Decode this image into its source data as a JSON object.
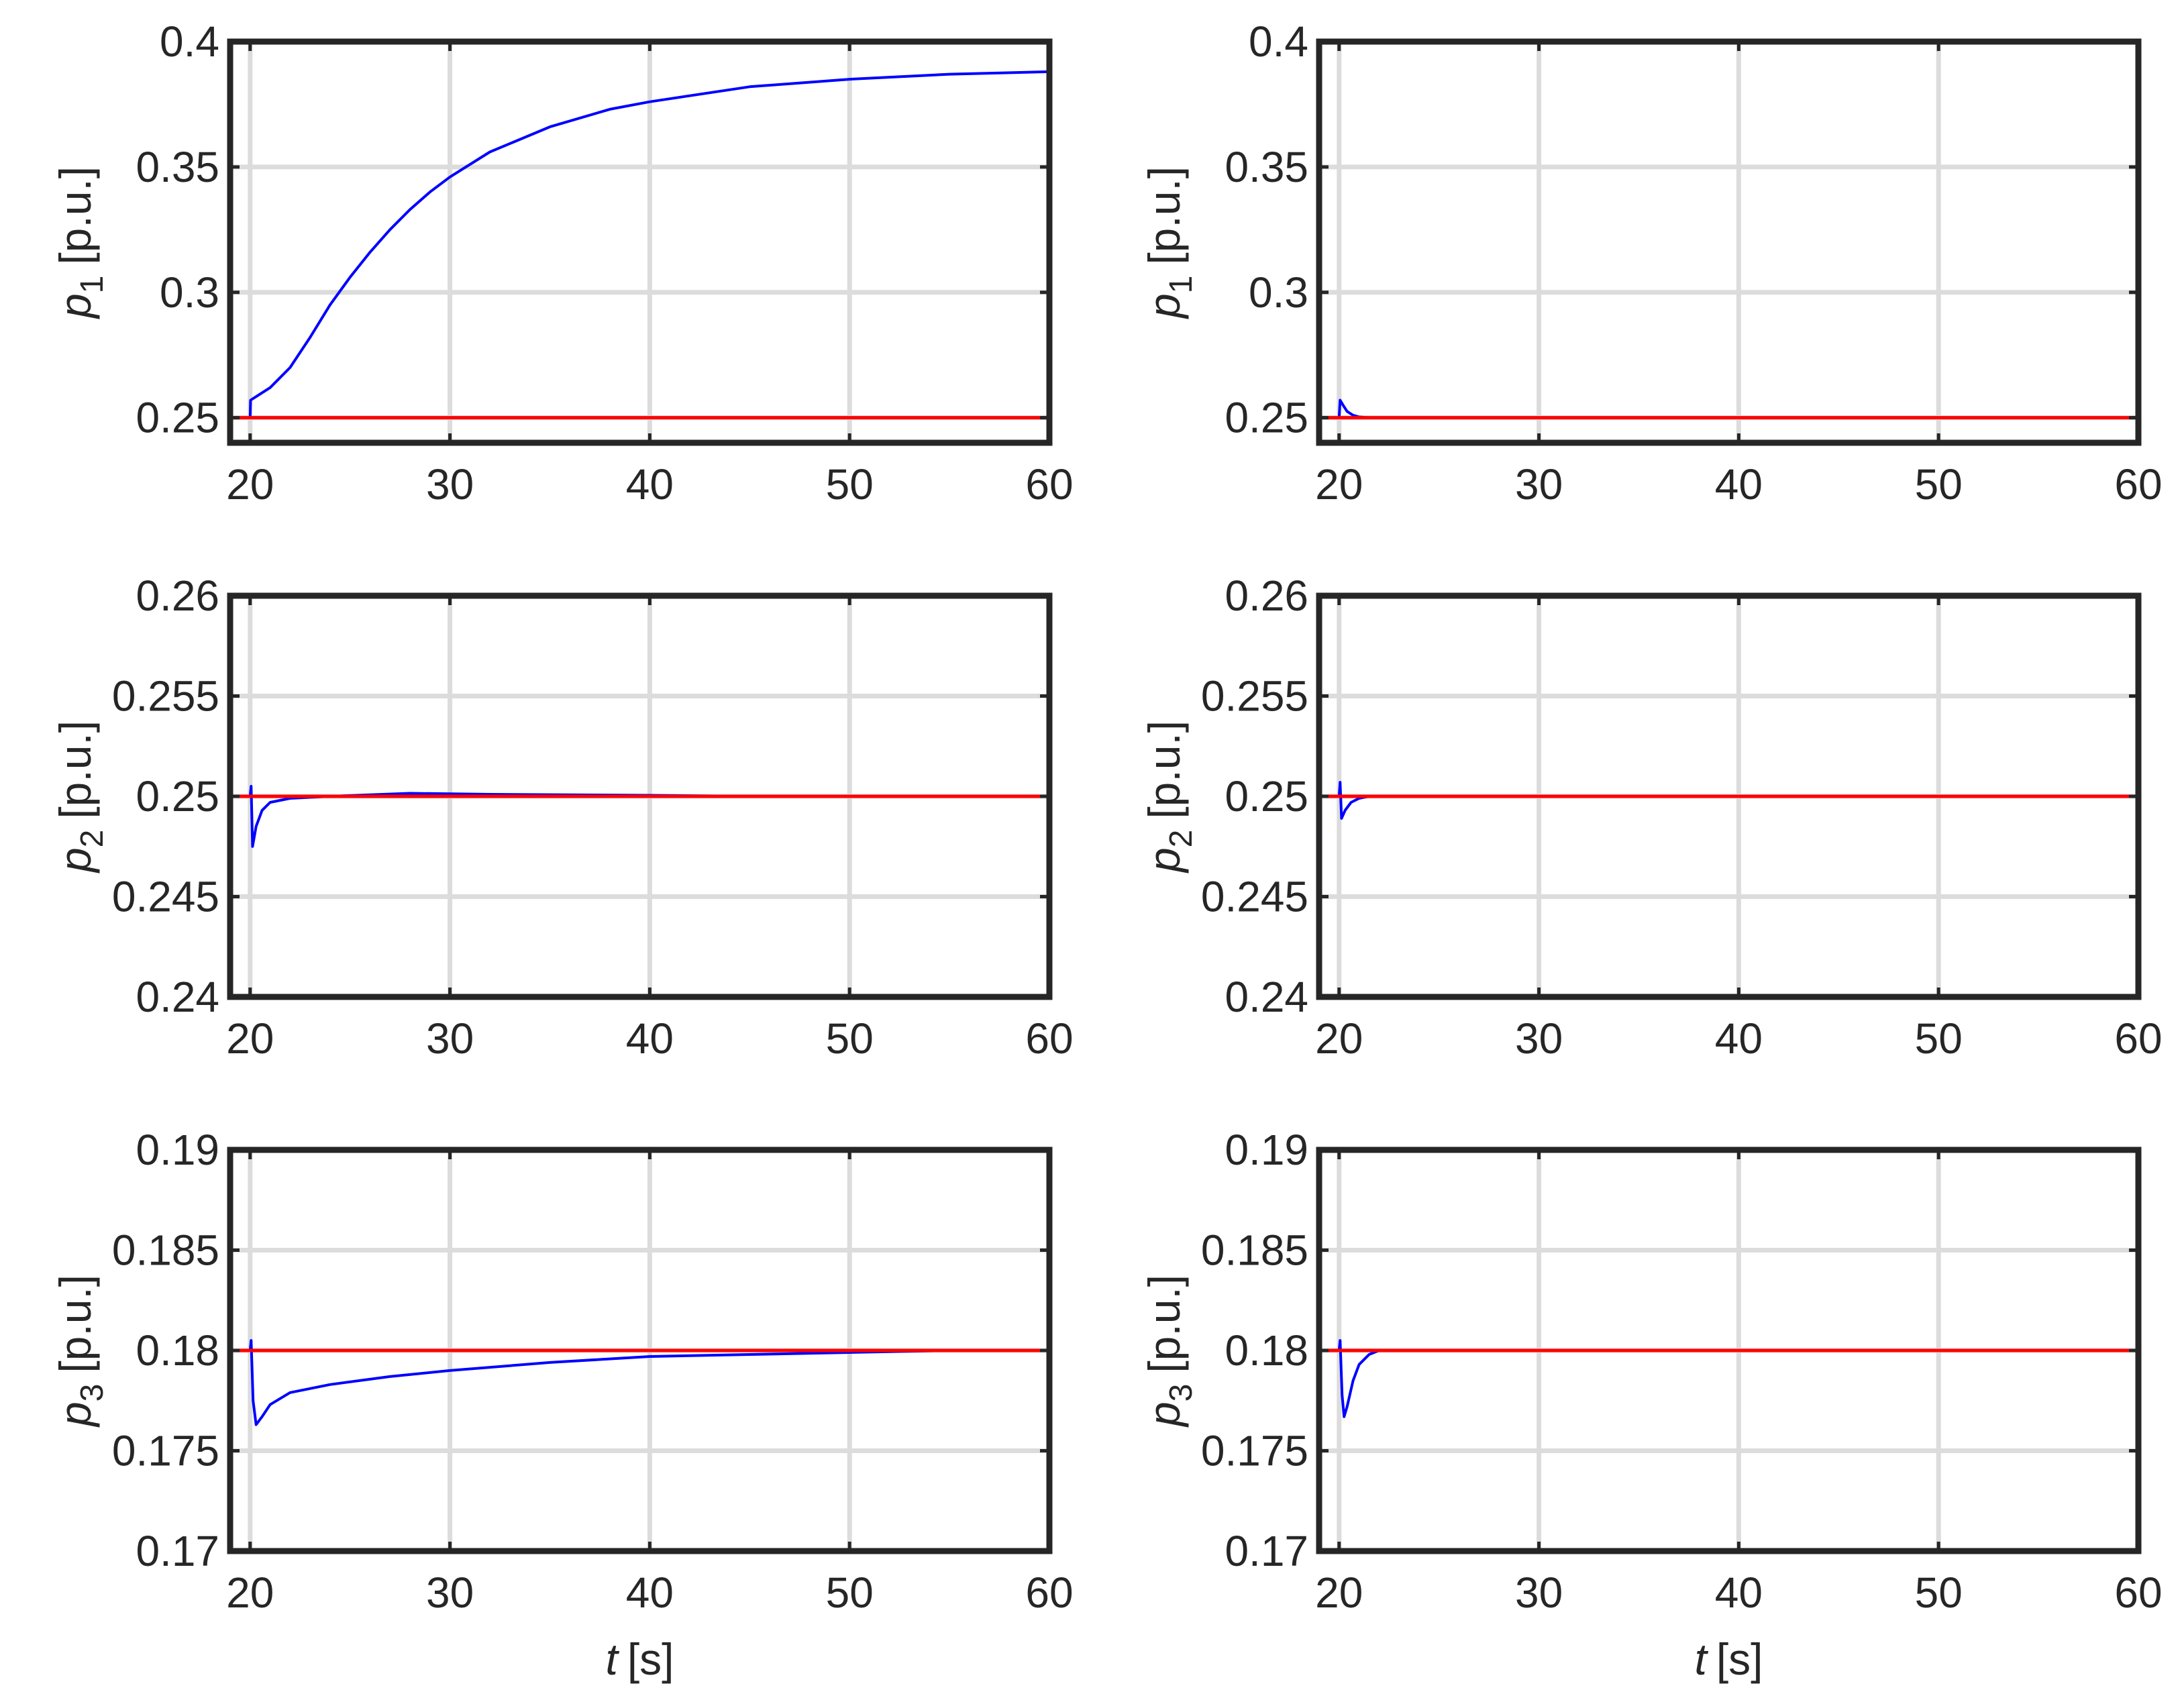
{
  "colors": {
    "grid": "#dcdcdc",
    "frame": "#262626",
    "measured": "#0000ff",
    "reference": "#ff0000"
  },
  "chart_data": [
    {
      "type": "line",
      "ylabel": {
        "sym": "p",
        "sub": "1",
        "unit": "[p.u.]"
      },
      "xlabel": null,
      "xlim": [
        19,
        60
      ],
      "ylim": [
        0.24,
        0.4
      ],
      "xticks": [
        20,
        30,
        40,
        50,
        60
      ],
      "xtick_labels": [
        "20",
        "30",
        "40",
        "50",
        "60"
      ],
      "yticks": [
        0.25,
        0.3,
        0.35,
        0.4
      ],
      "ytick_labels": [
        "0.25",
        "0.3",
        "0.35",
        "0.4"
      ],
      "grid": true,
      "series": [
        {
          "color": "#0000ff",
          "points": [
            [
              20,
              0.25
            ],
            [
              20.02,
              0.257
            ],
            [
              21,
              0.262
            ],
            [
              22,
              0.27
            ],
            [
              23,
              0.282
            ],
            [
              24,
              0.295
            ],
            [
              25,
              0.306
            ],
            [
              26,
              0.316
            ],
            [
              27,
              0.325
            ],
            [
              28,
              0.333
            ],
            [
              29,
              0.34
            ],
            [
              30,
              0.346
            ],
            [
              32,
              0.356
            ],
            [
              35,
              0.366
            ],
            [
              38,
              0.373
            ],
            [
              40,
              0.376
            ],
            [
              45,
              0.382
            ],
            [
              50,
              0.385
            ],
            [
              55,
              0.387
            ],
            [
              60,
              0.388
            ]
          ]
        },
        {
          "color": "#ff0000",
          "points": [
            [
              19,
              0.25
            ],
            [
              60,
              0.25
            ]
          ]
        }
      ]
    },
    {
      "type": "line",
      "ylabel": {
        "sym": "p",
        "sub": "1",
        "unit": "[p.u.]"
      },
      "xlabel": null,
      "xlim": [
        19,
        60
      ],
      "ylim": [
        0.24,
        0.4
      ],
      "xticks": [
        20,
        30,
        40,
        50,
        60
      ],
      "xtick_labels": [
        "20",
        "30",
        "40",
        "50",
        "60"
      ],
      "yticks": [
        0.25,
        0.3,
        0.35,
        0.4
      ],
      "ytick_labels": [
        "0.25",
        "0.3",
        "0.35",
        "0.4"
      ],
      "grid": true,
      "series": [
        {
          "color": "#0000ff",
          "points": [
            [
              20,
              0.25
            ],
            [
              20.05,
              0.257
            ],
            [
              20.2,
              0.255
            ],
            [
              20.4,
              0.2525
            ],
            [
              20.7,
              0.251
            ],
            [
              21,
              0.2503
            ],
            [
              21.5,
              0.25
            ],
            [
              60,
              0.25
            ]
          ]
        },
        {
          "color": "#ff0000",
          "points": [
            [
              19,
              0.25
            ],
            [
              60,
              0.25
            ]
          ]
        }
      ]
    },
    {
      "type": "line",
      "ylabel": {
        "sym": "p",
        "sub": "2",
        "unit": "[p.u.]"
      },
      "xlabel": null,
      "xlim": [
        19,
        60
      ],
      "ylim": [
        0.24,
        0.26
      ],
      "xticks": [
        20,
        30,
        40,
        50,
        60
      ],
      "xtick_labels": [
        "20",
        "30",
        "40",
        "50",
        "60"
      ],
      "yticks": [
        0.24,
        0.245,
        0.25,
        0.255,
        0.26
      ],
      "ytick_labels": [
        "0.24",
        "0.245",
        "0.25",
        "0.255",
        "0.26"
      ],
      "grid": true,
      "series": [
        {
          "color": "#0000ff",
          "points": [
            [
              20,
              0.25
            ],
            [
              20.05,
              0.2505
            ],
            [
              20.12,
              0.2475
            ],
            [
              20.3,
              0.2485
            ],
            [
              20.6,
              0.2493
            ],
            [
              21,
              0.2497
            ],
            [
              22,
              0.2499
            ],
            [
              24,
              0.25
            ],
            [
              28,
              0.25015
            ],
            [
              32,
              0.2501
            ],
            [
              40,
              0.25005
            ],
            [
              45,
              0.25
            ],
            [
              60,
              0.25
            ]
          ]
        },
        {
          "color": "#ff0000",
          "points": [
            [
              19,
              0.25
            ],
            [
              60,
              0.25
            ]
          ]
        }
      ]
    },
    {
      "type": "line",
      "ylabel": {
        "sym": "p",
        "sub": "2",
        "unit": "[p.u.]"
      },
      "xlabel": null,
      "xlim": [
        19,
        60
      ],
      "ylim": [
        0.24,
        0.26
      ],
      "xticks": [
        20,
        30,
        40,
        50,
        60
      ],
      "xtick_labels": [
        "20",
        "30",
        "40",
        "50",
        "60"
      ],
      "yticks": [
        0.24,
        0.245,
        0.25,
        0.255,
        0.26
      ],
      "ytick_labels": [
        "0.24",
        "0.245",
        "0.25",
        "0.255",
        "0.26"
      ],
      "grid": true,
      "series": [
        {
          "color": "#0000ff",
          "points": [
            [
              20,
              0.25
            ],
            [
              20.05,
              0.2507
            ],
            [
              20.12,
              0.2489
            ],
            [
              20.3,
              0.2493
            ],
            [
              20.6,
              0.2497
            ],
            [
              21,
              0.2499
            ],
            [
              21.5,
              0.25
            ],
            [
              60,
              0.25
            ]
          ]
        },
        {
          "color": "#ff0000",
          "points": [
            [
              19,
              0.25
            ],
            [
              60,
              0.25
            ]
          ]
        }
      ]
    },
    {
      "type": "line",
      "ylabel": {
        "sym": "p",
        "sub": "3",
        "unit": "[p.u.]"
      },
      "xlabel": {
        "sym": "t",
        "unit": "[s]"
      },
      "xlim": [
        19,
        60
      ],
      "ylim": [
        0.17,
        0.19
      ],
      "xticks": [
        20,
        30,
        40,
        50,
        60
      ],
      "xtick_labels": [
        "20",
        "30",
        "40",
        "50",
        "60"
      ],
      "yticks": [
        0.17,
        0.175,
        0.18,
        0.185,
        0.19
      ],
      "ytick_labels": [
        "0.17",
        "0.175",
        "0.18",
        "0.185",
        "0.19"
      ],
      "grid": true,
      "series": [
        {
          "color": "#0000ff",
          "points": [
            [
              20,
              0.18
            ],
            [
              20.05,
              0.1805
            ],
            [
              20.15,
              0.1775
            ],
            [
              20.3,
              0.1763
            ],
            [
              20.6,
              0.1767
            ],
            [
              21,
              0.1773
            ],
            [
              22,
              0.1779
            ],
            [
              24,
              0.1783
            ],
            [
              27,
              0.1787
            ],
            [
              30,
              0.179
            ],
            [
              35,
              0.1794
            ],
            [
              40,
              0.1797
            ],
            [
              45,
              0.1798
            ],
            [
              50,
              0.1799
            ],
            [
              55,
              0.18
            ],
            [
              60,
              0.18
            ]
          ]
        },
        {
          "color": "#ff0000",
          "points": [
            [
              19,
              0.18
            ],
            [
              60,
              0.18
            ]
          ]
        }
      ]
    },
    {
      "type": "line",
      "ylabel": {
        "sym": "p",
        "sub": "3",
        "unit": "[p.u.]"
      },
      "xlabel": {
        "sym": "t",
        "unit": "[s]"
      },
      "xlim": [
        19,
        60
      ],
      "ylim": [
        0.17,
        0.19
      ],
      "xticks": [
        20,
        30,
        40,
        50,
        60
      ],
      "xtick_labels": [
        "20",
        "30",
        "40",
        "50",
        "60"
      ],
      "yticks": [
        0.17,
        0.175,
        0.18,
        0.185,
        0.19
      ],
      "ytick_labels": [
        "0.17",
        "0.175",
        "0.18",
        "0.185",
        "0.19"
      ],
      "grid": true,
      "series": [
        {
          "color": "#0000ff",
          "points": [
            [
              20,
              0.18
            ],
            [
              20.05,
              0.1805
            ],
            [
              20.15,
              0.1778
            ],
            [
              20.25,
              0.1767
            ],
            [
              20.4,
              0.1772
            ],
            [
              20.7,
              0.1785
            ],
            [
              21,
              0.1793
            ],
            [
              21.5,
              0.1798
            ],
            [
              22,
              0.18
            ],
            [
              60,
              0.18
            ]
          ]
        },
        {
          "color": "#ff0000",
          "points": [
            [
              19,
              0.18
            ],
            [
              60,
              0.18
            ]
          ]
        }
      ]
    }
  ]
}
